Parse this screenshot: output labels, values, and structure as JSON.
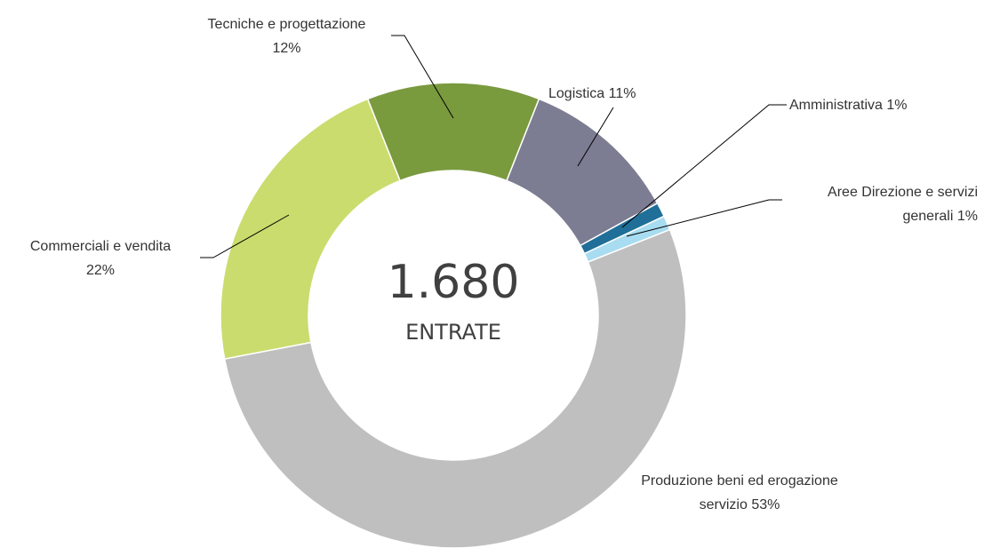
{
  "chart_data": {
    "type": "donut",
    "center_value": "1.680",
    "center_text": "ENTRATE",
    "categories": [
      "Tecniche e progettazione",
      "Logistica",
      "Amministrativa",
      "Aree Direzione e servizi generali",
      "Produzione beni ed erogazione servizio",
      "Commerciali e vendita"
    ],
    "values": [
      12,
      11,
      1,
      1,
      53,
      22
    ],
    "value_labels": [
      "12%",
      "11%",
      "1%",
      "1%",
      "53%",
      "22%"
    ],
    "colors": [
      "#7a9a3e",
      "#7c7c92",
      "#1f6f99",
      "#a8dcf0",
      "#bfbfbf",
      "#cbdc6e"
    ]
  }
}
